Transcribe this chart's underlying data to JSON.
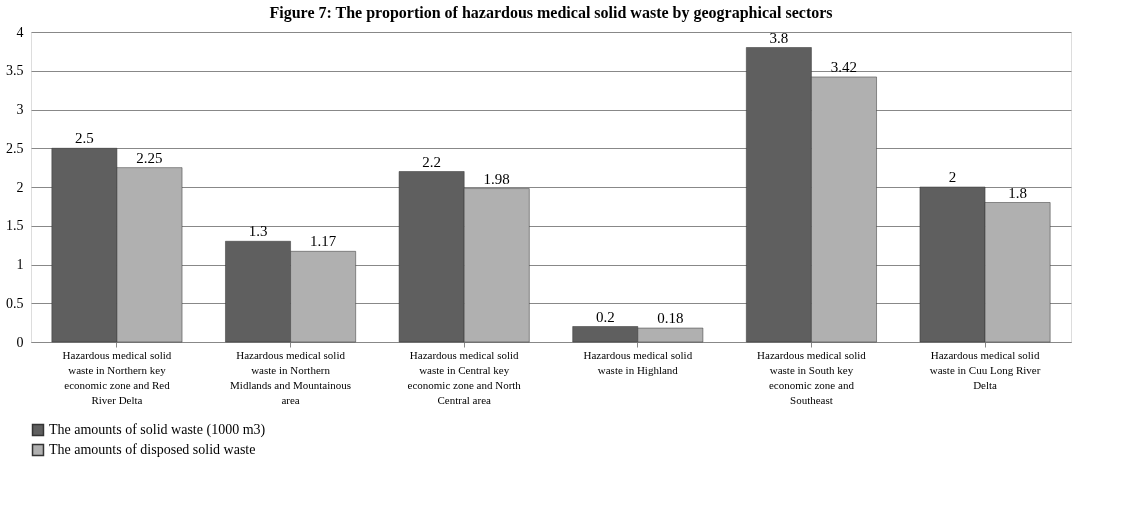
{
  "chart_data": {
    "type": "bar",
    "title": "Figure 7: The proportion of hazardous medical solid waste by geographical sectors",
    "categories": [
      "Hazardous medical solid waste in Northern key economic zone and Red River Delta",
      "Hazardous medical solid waste in Northern Midlands and Mountainous area",
      "Hazardous medical solid waste in Central key economic zone and North Central area",
      "Hazardous medical solid waste in Highland",
      "Hazardous medical solid waste in South key economic zone and Southeast",
      "Hazardous medical solid waste in Cuu Long River Delta"
    ],
    "series": [
      {
        "name": "The amounts of solid waste (1000 m3)",
        "color": "#5f5f5f",
        "values": [
          2.5,
          1.3,
          2.2,
          0.2,
          3.8,
          2
        ]
      },
      {
        "name": "The amounts of disposed solid waste",
        "color": "#b0b0b0",
        "values": [
          2.25,
          1.17,
          1.98,
          0.18,
          3.42,
          1.8
        ]
      }
    ],
    "ylim": [
      0,
      4
    ],
    "yticks": [
      0,
      0.5,
      1,
      1.5,
      2,
      2.5,
      3,
      3.5,
      4
    ],
    "grid": "y",
    "legend": "bottom",
    "data_labels": true
  }
}
